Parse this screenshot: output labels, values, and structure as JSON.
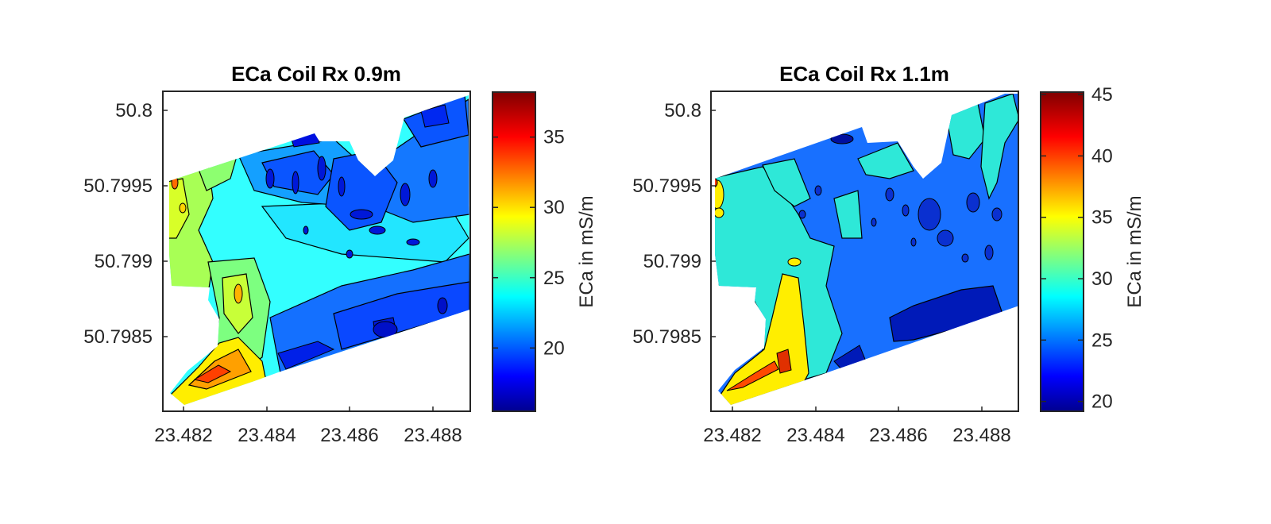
{
  "chart_data": [
    {
      "type": "heatmap",
      "title": "ECa Coil Rx 0.9m",
      "xlabel": "",
      "ylabel": "",
      "xlim": [
        23.4815,
        23.4889
      ],
      "ylim": [
        50.798,
        50.80105
      ],
      "x_ticks": [
        "23.482",
        "23.484",
        "23.486",
        "23.488"
      ],
      "x_tick_values": [
        23.482,
        23.484,
        23.486,
        23.488
      ],
      "y_ticks": [
        "50.8",
        "50.7995",
        "50.799",
        "50.7985"
      ],
      "y_tick_values": [
        50.8,
        50.7995,
        50.799,
        50.7985
      ],
      "colorbar": {
        "label": "ECa in mS/m",
        "range": [
          15.5,
          38.2
        ],
        "ticks": [
          "20",
          "25",
          "30",
          "35"
        ],
        "tick_values": [
          20,
          25,
          30,
          35
        ],
        "colormap": "jet"
      },
      "levels": [
        "~15 to ~38 mS/m; contoured at 2.5 mS/m steps"
      ],
      "zones": [
        {
          "area": "south-west strip near 23.4825, 50.7981",
          "eca": 33
        },
        {
          "area": "west edge 23.4815-23.4830",
          "eca": 28
        },
        {
          "area": "central band",
          "eca": 24
        },
        {
          "area": "north-east 23.487-23.489",
          "eca": 20
        },
        {
          "area": "south-east 23.485-23.489",
          "eca": 19
        }
      ]
    },
    {
      "type": "heatmap",
      "title": "ECa Coil Rx 1.1m",
      "xlabel": "",
      "ylabel": "",
      "xlim": [
        23.4815,
        23.4889
      ],
      "ylim": [
        50.798,
        50.80105
      ],
      "x_ticks": [
        "23.482",
        "23.484",
        "23.486",
        "23.488"
      ],
      "x_tick_values": [
        23.482,
        23.484,
        23.486,
        23.488
      ],
      "y_ticks": [
        "50.8",
        "50.7995",
        "50.799",
        "50.7985"
      ],
      "y_tick_values": [
        50.8,
        50.7995,
        50.799,
        50.7985
      ],
      "colorbar": {
        "label": "ECa in mS/m",
        "range": [
          19.2,
          45.2
        ],
        "ticks": [
          "20",
          "25",
          "30",
          "35",
          "40",
          "45"
        ],
        "tick_values": [
          20,
          25,
          30,
          35,
          40,
          45
        ],
        "colormap": "jet"
      },
      "levels": [
        "~19 to ~45 mS/m; contoured at 5 mS/m steps"
      ],
      "zones": [
        {
          "area": "south-west strip near 23.4825, 50.7981",
          "eca": 40
        },
        {
          "area": "west lobe near 23.4835, 50.7984",
          "eca": 36
        },
        {
          "area": "west / central band",
          "eca": 30
        },
        {
          "area": "main field",
          "eca": 25
        },
        {
          "area": "south-east pockets",
          "eca": 21
        }
      ]
    }
  ]
}
